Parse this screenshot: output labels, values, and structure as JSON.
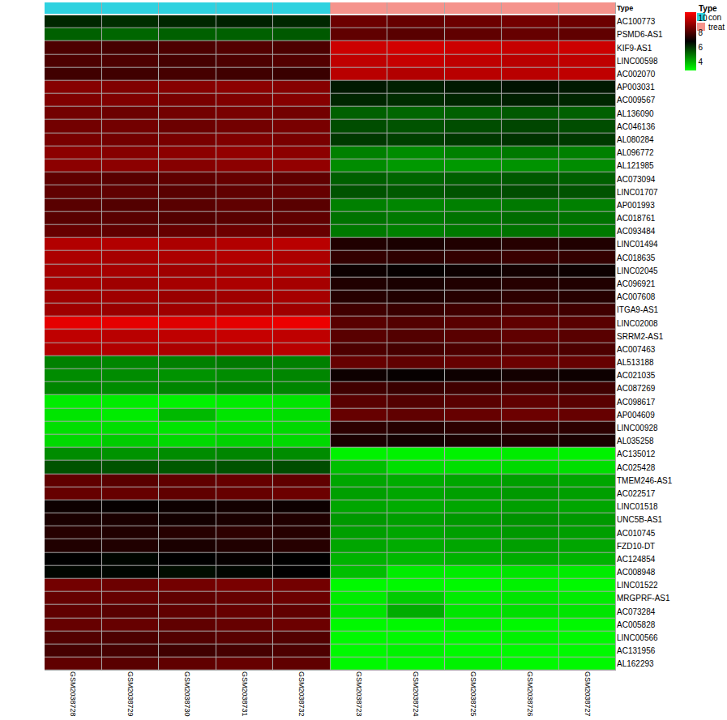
{
  "chart_data": {
    "type": "heatmap",
    "columns": [
      "GSM2038728",
      "GSM2038729",
      "GSM2038730",
      "GSM2038731",
      "GSM2038732",
      "GSM2038723",
      "GSM2038724",
      "GSM2038725",
      "GSM2038726",
      "GSM2038727"
    ],
    "column_groups": [
      "con",
      "con",
      "con",
      "con",
      "con",
      "treat",
      "treat",
      "treat",
      "treat",
      "treat"
    ],
    "group_title": "Type",
    "groups": [
      {
        "name": "con",
        "color": "#2fd2e0"
      },
      {
        "name": "treat",
        "color": "#f5938c"
      }
    ],
    "colors": [
      "#00ff00",
      "#000000",
      "#ff0000"
    ],
    "colorbar": {
      "range": [
        2.8,
        10.8
      ],
      "ticks": [
        4,
        6,
        8,
        10
      ]
    },
    "rows": [
      "AC100773",
      "PSMD6-AS1",
      "KIF9-AS1",
      "LINC00598",
      "AC002070",
      "AP003031",
      "AC009567",
      "AL136090",
      "AC046136",
      "AL080284",
      "AL096772",
      "AL121985",
      "AC073094",
      "LINC01707",
      "AP001993",
      "AC018761",
      "AC093484",
      "LINC01494",
      "AC018635",
      "LINC02045",
      "AC096921",
      "AC007608",
      "ITGA9-AS1",
      "LINC02008",
      "SRRM2-AS1",
      "AC007463",
      "AL513188",
      "AC021035",
      "AC087269",
      "AC098617",
      "AP004609",
      "LINC00928",
      "AL035258",
      "AC135012",
      "AC025428",
      "TMEM246-AS1",
      "AC022517",
      "LINC01518",
      "UNC5B-AS1",
      "AC010745",
      "FZD10-DT",
      "AC124854",
      "AC008948",
      "LINC01522",
      "MRGPRF-AS1",
      "AC073284",
      "AC005828",
      "LINC00566",
      "AC131956",
      "AL162293"
    ],
    "cells": [
      [
        6.2,
        6.1,
        6.2,
        6.3,
        6.2,
        8.5,
        8.4,
        8.5,
        8.6,
        8.5
      ],
      [
        5.3,
        5.2,
        5.3,
        5.3,
        5.4,
        8.3,
        8.2,
        8.3,
        8.4,
        8.3
      ],
      [
        8.0,
        7.9,
        8.0,
        8.1,
        8.0,
        10.0,
        10.1,
        10.0,
        9.9,
        10.0
      ],
      [
        8.0,
        8.0,
        7.9,
        8.0,
        8.1,
        9.8,
        9.9,
        9.8,
        9.7,
        9.8
      ],
      [
        7.8,
        7.8,
        7.9,
        7.8,
        7.7,
        9.7,
        9.6,
        9.7,
        9.7,
        9.8
      ],
      [
        8.9,
        8.8,
        8.9,
        9.0,
        8.9,
        6.4,
        6.3,
        6.4,
        6.5,
        6.4
      ],
      [
        8.8,
        8.8,
        8.7,
        8.8,
        8.9,
        6.2,
        6.1,
        6.2,
        6.3,
        6.2
      ],
      [
        8.6,
        8.5,
        8.6,
        8.7,
        8.6,
        5.3,
        5.2,
        5.3,
        5.4,
        5.3
      ],
      [
        8.6,
        8.6,
        8.5,
        8.6,
        8.7,
        5.6,
        5.5,
        5.6,
        5.7,
        5.6
      ],
      [
        8.7,
        8.6,
        8.7,
        8.8,
        8.7,
        5.9,
        5.8,
        5.9,
        6.0,
        5.9
      ],
      [
        9.0,
        8.9,
        9.0,
        9.1,
        9.0,
        4.8,
        4.6,
        4.8,
        4.9,
        4.8
      ],
      [
        9.0,
        9.0,
        8.9,
        9.0,
        9.1,
        4.6,
        4.4,
        4.4,
        4.5,
        4.6
      ],
      [
        8.3,
        8.2,
        8.3,
        8.4,
        8.3,
        5.3,
        5.2,
        5.3,
        5.4,
        5.3
      ],
      [
        8.3,
        8.3,
        8.2,
        8.3,
        8.4,
        5.5,
        5.4,
        5.5,
        5.6,
        5.5
      ],
      [
        8.2,
        8.1,
        8.2,
        8.3,
        8.2,
        4.8,
        4.7,
        4.8,
        4.9,
        4.8
      ],
      [
        8.2,
        8.2,
        8.1,
        8.2,
        8.3,
        5.0,
        4.9,
        5.0,
        5.1,
        5.0
      ],
      [
        8.4,
        8.3,
        8.4,
        8.5,
        8.4,
        4.9,
        4.8,
        4.9,
        5.0,
        4.9
      ],
      [
        9.6,
        9.6,
        9.5,
        9.6,
        9.7,
        7.3,
        7.2,
        7.3,
        7.4,
        7.3
      ],
      [
        9.5,
        9.4,
        9.5,
        9.6,
        9.5,
        7.6,
        7.5,
        7.6,
        7.7,
        7.6
      ],
      [
        9.4,
        9.4,
        9.3,
        9.4,
        9.5,
        7.0,
        6.9,
        7.0,
        7.1,
        7.0
      ],
      [
        9.4,
        9.3,
        9.4,
        9.5,
        9.4,
        7.3,
        7.2,
        7.3,
        7.4,
        7.3
      ],
      [
        9.3,
        9.3,
        9.2,
        9.3,
        9.4,
        7.4,
        7.3,
        7.4,
        7.5,
        7.4
      ],
      [
        9.3,
        9.2,
        9.3,
        9.4,
        9.3,
        7.8,
        7.7,
        7.8,
        7.9,
        7.8
      ],
      [
        10.4,
        10.4,
        10.3,
        10.4,
        10.5,
        8.2,
        8.1,
        8.2,
        8.3,
        8.2
      ],
      [
        9.8,
        9.7,
        9.8,
        9.9,
        9.8,
        8.2,
        8.1,
        8.2,
        8.3,
        8.2
      ],
      [
        9.6,
        9.6,
        9.5,
        9.6,
        9.7,
        8.0,
        7.9,
        8.0,
        8.1,
        8.0
      ],
      [
        4.8,
        4.7,
        4.8,
        4.9,
        4.8,
        8.4,
        8.3,
        8.4,
        8.5,
        8.4
      ],
      [
        4.6,
        4.6,
        4.5,
        4.6,
        4.7,
        7.0,
        6.9,
        7.0,
        7.1,
        7.0
      ],
      [
        4.7,
        4.6,
        4.7,
        4.8,
        4.7,
        7.8,
        7.7,
        7.8,
        7.9,
        7.8
      ],
      [
        3.1,
        3.1,
        3.0,
        3.1,
        3.2,
        8.2,
        8.1,
        8.2,
        8.3,
        8.2
      ],
      [
        3.2,
        3.1,
        3.9,
        3.2,
        3.3,
        8.4,
        8.3,
        8.4,
        8.5,
        8.4
      ],
      [
        3.3,
        3.3,
        3.2,
        3.3,
        3.4,
        7.5,
        7.4,
        7.5,
        7.6,
        7.5
      ],
      [
        3.4,
        3.6,
        3.4,
        3.5,
        3.4,
        7.2,
        7.1,
        7.2,
        7.3,
        7.2
      ],
      [
        4.6,
        4.5,
        4.6,
        4.7,
        4.6,
        3.0,
        3.0,
        3.0,
        3.1,
        3.0
      ],
      [
        5.5,
        5.5,
        5.4,
        5.5,
        5.6,
        3.8,
        3.3,
        3.3,
        3.4,
        3.3
      ],
      [
        8.3,
        8.2,
        8.3,
        8.4,
        8.3,
        4.2,
        4.1,
        4.2,
        4.3,
        4.2
      ],
      [
        8.4,
        8.4,
        8.3,
        8.4,
        8.5,
        4.3,
        4.2,
        4.3,
        4.4,
        4.3
      ],
      [
        7.0,
        6.9,
        7.0,
        7.1,
        7.0,
        4.2,
        4.1,
        4.2,
        4.3,
        4.2
      ],
      [
        7.2,
        7.2,
        7.1,
        7.2,
        7.3,
        4.4,
        4.3,
        4.4,
        4.5,
        4.4
      ],
      [
        7.4,
        7.3,
        7.4,
        7.5,
        7.4,
        4.3,
        4.2,
        4.3,
        4.4,
        4.3
      ],
      [
        7.3,
        7.3,
        7.2,
        7.3,
        7.4,
        4.2,
        4.1,
        4.2,
        4.3,
        4.2
      ],
      [
        6.8,
        6.7,
        6.8,
        6.9,
        6.8,
        4.0,
        3.9,
        4.0,
        4.1,
        4.0
      ],
      [
        6.7,
        6.7,
        6.6,
        6.7,
        6.8,
        3.8,
        3.1,
        3.1,
        3.2,
        3.1
      ],
      [
        8.6,
        8.5,
        8.6,
        8.7,
        8.6,
        2.9,
        2.9,
        2.9,
        3.0,
        2.9
      ],
      [
        8.4,
        8.4,
        8.3,
        8.4,
        8.5,
        3.1,
        3.6,
        3.1,
        3.2,
        3.1
      ],
      [
        8.3,
        8.2,
        8.3,
        8.4,
        8.3,
        3.2,
        4.1,
        3.2,
        3.3,
        3.2
      ],
      [
        8.4,
        8.4,
        8.3,
        8.4,
        8.5,
        2.9,
        2.9,
        3.0,
        2.9,
        2.9
      ],
      [
        8.1,
        8.0,
        8.1,
        8.2,
        8.1,
        2.9,
        2.9,
        2.9,
        3.0,
        2.9
      ],
      [
        7.9,
        7.9,
        7.8,
        7.9,
        8.0,
        2.9,
        3.0,
        2.9,
        2.9,
        2.9
      ],
      [
        8.3,
        8.2,
        8.3,
        8.4,
        8.3,
        2.9,
        2.9,
        3.0,
        2.9,
        2.9
      ]
    ]
  }
}
